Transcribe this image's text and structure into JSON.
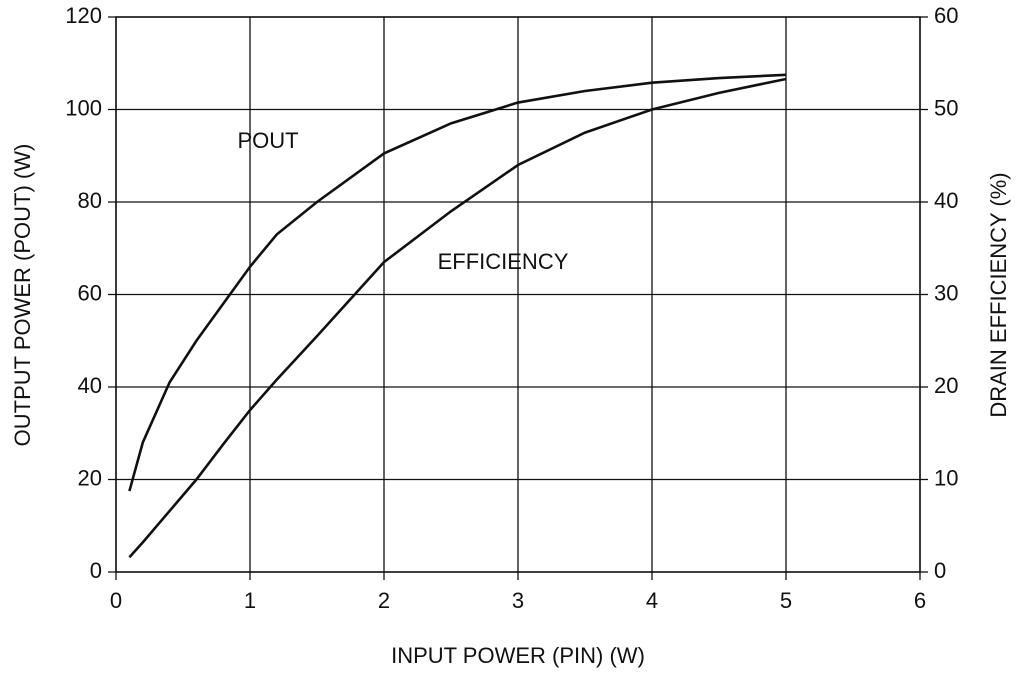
{
  "chart_data": {
    "type": "line",
    "xlabel": "INPUT POWER (PIN) (W)",
    "ylabel": "OUTPUT POWER (POUT) (W)",
    "y2label": "DRAIN EFFICIENCY (%)",
    "annotations": [
      "POUT",
      "EFFICIENCY"
    ],
    "x": [
      0.1,
      0.2,
      0.4,
      0.6,
      0.8,
      1.0,
      1.2,
      1.5,
      2.0,
      2.5,
      3.0,
      3.5,
      4.0,
      4.5,
      5.0
    ],
    "series": [
      {
        "name": "POUT",
        "color": "#111111",
        "values": [
          17.5,
          28,
          41,
          50,
          58,
          66,
          73,
          80,
          90.5,
          97,
          101.5,
          104,
          105.8,
          106.8,
          107.5
        ]
      },
      {
        "name": "EFFICIENCY",
        "color": "#111111",
        "axis": "y2",
        "values": [
          1.6,
          3.2,
          6.6,
          10,
          13.8,
          17.5,
          20.8,
          25.5,
          33.5,
          39,
          44,
          47.5,
          50,
          51.8,
          53.3
        ]
      }
    ],
    "xlim": [
      0,
      6
    ],
    "xticks": [
      0,
      1,
      2,
      3,
      4,
      5,
      6
    ],
    "ylim": [
      0,
      120
    ],
    "yticks": [
      0,
      20,
      40,
      60,
      80,
      100,
      120
    ],
    "y2lim": [
      0,
      60
    ],
    "y2ticks": [
      0,
      10,
      20,
      30,
      40,
      50,
      60
    ],
    "grid": true
  }
}
